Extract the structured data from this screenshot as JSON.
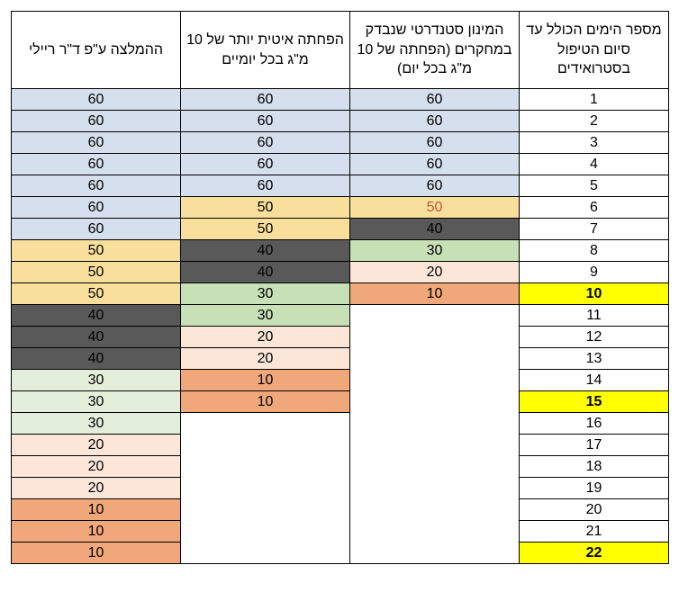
{
  "palette": {
    "blue": "#d6dfee",
    "yellow60": "#f8df9b",
    "yellowBright": "#ffff00",
    "orangeText": "#c05d2c",
    "gray": "#595959",
    "greenLight": "#e3efda",
    "greenDark": "#c8e0b6",
    "pinkLight": "#fce6d8",
    "pinkMid": "#f8ccad",
    "orangeDark": "#f0a77a",
    "white": "#ffffff",
    "black": "#000000"
  },
  "headers": [
    "ההמלצה ע\"פ ד\"ר ריילי",
    "הפחתה איטית יותר של 10 מ\"ג בכל יומיים",
    "המינון סטנדרטי שנבדק במחקרים (הפחתה של 10 מ\"ג בכל יום)",
    "מספר הימים הכולל עד סיום הטיפול בסטרואידים"
  ],
  "rows": [
    {
      "c0": {
        "v": "60",
        "bg": "blue"
      },
      "c1": {
        "v": "60",
        "bg": "blue"
      },
      "c2": {
        "v": "60",
        "bg": "blue"
      },
      "c3": {
        "v": "1",
        "bg": "white"
      }
    },
    {
      "c0": {
        "v": "60",
        "bg": "blue"
      },
      "c1": {
        "v": "60",
        "bg": "blue"
      },
      "c2": {
        "v": "60",
        "bg": "blue"
      },
      "c3": {
        "v": "2",
        "bg": "white"
      }
    },
    {
      "c0": {
        "v": "60",
        "bg": "blue"
      },
      "c1": {
        "v": "60",
        "bg": "blue"
      },
      "c2": {
        "v": "60",
        "bg": "blue"
      },
      "c3": {
        "v": "3",
        "bg": "white"
      }
    },
    {
      "c0": {
        "v": "60",
        "bg": "blue"
      },
      "c1": {
        "v": "60",
        "bg": "blue"
      },
      "c2": {
        "v": "60",
        "bg": "blue"
      },
      "c3": {
        "v": "4",
        "bg": "white"
      }
    },
    {
      "c0": {
        "v": "60",
        "bg": "blue"
      },
      "c1": {
        "v": "60",
        "bg": "blue"
      },
      "c2": {
        "v": "60",
        "bg": "blue"
      },
      "c3": {
        "v": "5",
        "bg": "white"
      }
    },
    {
      "c0": {
        "v": "60",
        "bg": "blue"
      },
      "c1": {
        "v": "50",
        "bg": "yellow60"
      },
      "c2": {
        "v": "50",
        "bg": "yellow60",
        "fg": "orangeText"
      },
      "c3": {
        "v": "6",
        "bg": "white"
      }
    },
    {
      "c0": {
        "v": "60",
        "bg": "blue"
      },
      "c1": {
        "v": "50",
        "bg": "yellow60"
      },
      "c2": {
        "v": "40",
        "bg": "gray"
      },
      "c3": {
        "v": "7",
        "bg": "white"
      }
    },
    {
      "c0": {
        "v": "50",
        "bg": "yellow60"
      },
      "c1": {
        "v": "40",
        "bg": "gray"
      },
      "c2": {
        "v": "30",
        "bg": "greenDark"
      },
      "c3": {
        "v": "8",
        "bg": "white"
      }
    },
    {
      "c0": {
        "v": "50",
        "bg": "yellow60"
      },
      "c1": {
        "v": "40",
        "bg": "gray"
      },
      "c2": {
        "v": "20",
        "bg": "pinkLight"
      },
      "c3": {
        "v": "9",
        "bg": "white"
      }
    },
    {
      "c0": {
        "v": "50",
        "bg": "yellow60"
      },
      "c1": {
        "v": "30",
        "bg": "greenDark"
      },
      "c2": {
        "v": "10",
        "bg": "orangeDark"
      },
      "c3": {
        "v": "10",
        "bg": "yellowBright",
        "bold": true
      }
    },
    {
      "c0": {
        "v": "40",
        "bg": "gray"
      },
      "c1": {
        "v": "30",
        "bg": "greenDark"
      },
      "c2": null,
      "c3": {
        "v": "11",
        "bg": "white"
      }
    },
    {
      "c0": {
        "v": "40",
        "bg": "gray"
      },
      "c1": {
        "v": "20",
        "bg": "pinkLight"
      },
      "c2": null,
      "c3": {
        "v": "12",
        "bg": "white"
      }
    },
    {
      "c0": {
        "v": "40",
        "bg": "gray"
      },
      "c1": {
        "v": "20",
        "bg": "pinkLight"
      },
      "c2": null,
      "c3": {
        "v": "13",
        "bg": "white"
      }
    },
    {
      "c0": {
        "v": "30",
        "bg": "greenLight"
      },
      "c1": {
        "v": "10",
        "bg": "orangeDark"
      },
      "c2": null,
      "c3": {
        "v": "14",
        "bg": "white"
      }
    },
    {
      "c0": {
        "v": "30",
        "bg": "greenLight"
      },
      "c1": {
        "v": "10",
        "bg": "orangeDark"
      },
      "c2": null,
      "c3": {
        "v": "15",
        "bg": "yellowBright",
        "bold": true
      }
    },
    {
      "c0": {
        "v": "30",
        "bg": "greenLight"
      },
      "c1": null,
      "c2": null,
      "c3": {
        "v": "16",
        "bg": "white"
      }
    },
    {
      "c0": {
        "v": "20",
        "bg": "pinkLight"
      },
      "c1": null,
      "c2": null,
      "c3": {
        "v": "17",
        "bg": "white"
      }
    },
    {
      "c0": {
        "v": "20",
        "bg": "pinkLight"
      },
      "c1": null,
      "c2": null,
      "c3": {
        "v": "18",
        "bg": "white"
      }
    },
    {
      "c0": {
        "v": "20",
        "bg": "pinkLight"
      },
      "c1": null,
      "c2": null,
      "c3": {
        "v": "19",
        "bg": "white"
      }
    },
    {
      "c0": {
        "v": "10",
        "bg": "orangeDark"
      },
      "c1": null,
      "c2": null,
      "c3": {
        "v": "20",
        "bg": "white"
      }
    },
    {
      "c0": {
        "v": "10",
        "bg": "orangeDark"
      },
      "c1": null,
      "c2": null,
      "c3": {
        "v": "21",
        "bg": "white"
      }
    },
    {
      "c0": {
        "v": "10",
        "bg": "orangeDark"
      },
      "c1": null,
      "c2": null,
      "c3": {
        "v": "22",
        "bg": "yellowBright",
        "bold": true
      }
    }
  ]
}
